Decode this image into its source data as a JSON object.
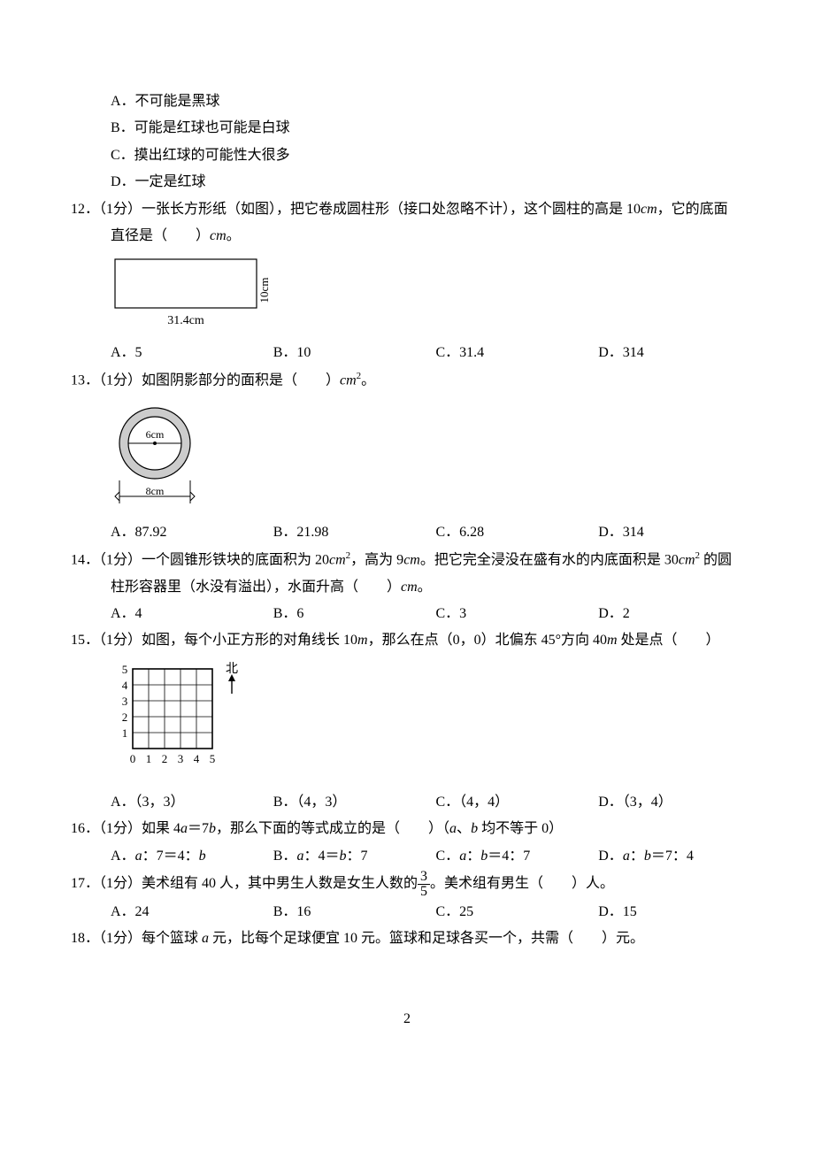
{
  "q11_opts": {
    "A": "A．不可能是黑球",
    "B": "B．可能是红球也可能是白球",
    "C": "C．摸出红球的可能性大很多",
    "D": "D．一定是红球"
  },
  "q12": {
    "stem_a": "12．（1分）一张长方形纸（如图），把它卷成圆柱形（接口处忽略不计），这个圆柱的高是 10",
    "stem_b": "，它的底面",
    "stem_c": "直径是（　　）",
    "stem_d": "。",
    "unit": "cm",
    "fig": {
      "w": "31.4cm",
      "h": "10cm",
      "rect_stroke": "#000",
      "rect_fill": "none"
    },
    "opts": {
      "A": "A．5",
      "B": "B．10",
      "C": "C．31.4",
      "D": "D．314"
    }
  },
  "q13": {
    "stem_a": "13．（1分）如图阴影部分的面积是（　　）",
    "stem_b": "。",
    "unit": "cm",
    "fig": {
      "outer_r": 40,
      "inner_r": 30,
      "fill": "#cccccc",
      "stroke": "#000",
      "label_inner": "6cm",
      "label_outer": "8cm"
    },
    "opts": {
      "A": "A．87.92",
      "B": "B．21.98",
      "C": "C．6.28",
      "D": "D．314"
    }
  },
  "q14": {
    "stem_a": "14．（1分）一个圆锥形铁块的底面积为 20",
    "stem_b": "，高为 9",
    "stem_c": "。把它完全浸没在盛有水的内底面积是 30",
    "stem_d": " 的圆",
    "stem_e": "柱形容器里（水没有溢出），水面升高（　　）",
    "stem_f": "。",
    "unit": "cm",
    "opts": {
      "A": "A．4",
      "B": "B．6",
      "C": "C．3",
      "D": "D．2"
    }
  },
  "q15": {
    "stem_a": "15．（1分）如图，每个小正方形的对角线长 10",
    "stem_b": "，那么在点（0，0）北偏东 45°方向 40",
    "stem_c": " 处是点（　　）",
    "unit": "m",
    "fig": {
      "cols": 5,
      "rows": 5,
      "cell": 18,
      "stroke": "#000",
      "labels_x": [
        "0",
        "1",
        "2",
        "3",
        "4",
        "5"
      ],
      "labels_y": [
        "1",
        "2",
        "3",
        "4",
        "5"
      ],
      "north": "北"
    },
    "opts": {
      "A": "A．（3，3）",
      "B": "B．（4，3）",
      "C": "C．（4，4）",
      "D": "D．（3，4）"
    }
  },
  "q16": {
    "stem_a": "16．（1分）如果 4",
    "stem_b": "＝7",
    "stem_c": "，那么下面的等式成立的是（　　）（",
    "stem_d": "、",
    "stem_e": " 均不等于 0）",
    "a": "a",
    "b": "b",
    "opts": {
      "A_pre": "A．",
      "A_mid": "：7＝4：",
      "B_pre": "B．",
      "B_mid": "：4＝",
      "B_end": "：7",
      "C_pre": "C．",
      "C_mid": "：",
      "C_end": "＝4：7",
      "D_pre": "D．",
      "D_mid": "：",
      "D_end": "＝7：4"
    }
  },
  "q17": {
    "stem_a": "17．（1分）美术组有 40 人，其中男生人数是女生人数的",
    "frac": {
      "n": "3",
      "d": "5"
    },
    "stem_b": "。美术组有男生（　　）人。",
    "opts": {
      "A": "A．24",
      "B": "B．16",
      "C": "C．25",
      "D": "D．15"
    }
  },
  "q18": {
    "stem_a": "18．（1分）每个篮球 ",
    "stem_b": " 元，比每个足球便宜 10 元。篮球和足球各买一个，共需（　　）元。",
    "a": "a"
  },
  "page_num": "2"
}
